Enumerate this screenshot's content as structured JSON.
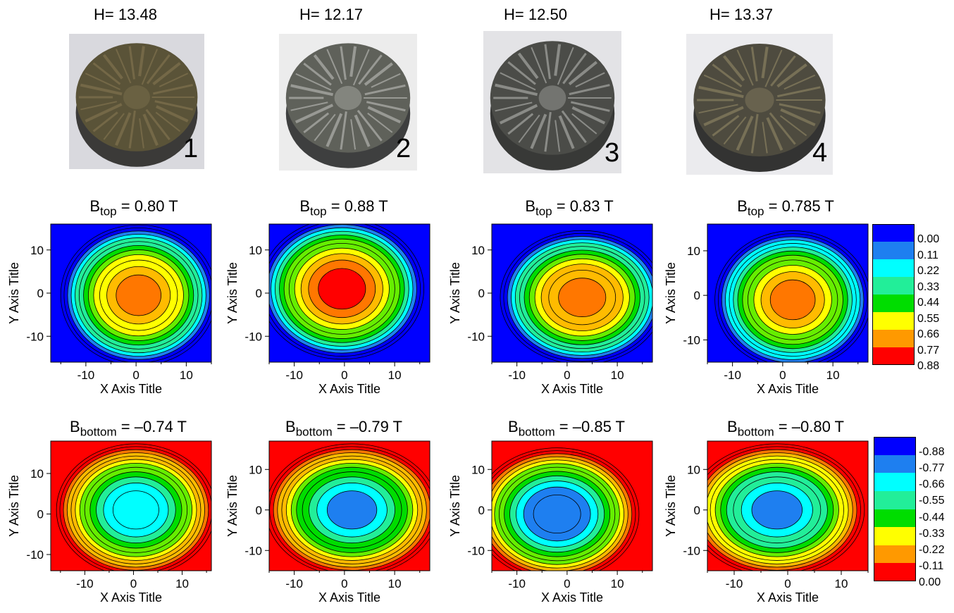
{
  "samples": [
    {
      "h_label": "H= 13.48",
      "number": "1",
      "photo_colors": {
        "bg": "#d9d9de",
        "face": "#5a5338",
        "rim": "#3b3a38",
        "highlight": "#8a7a55"
      }
    },
    {
      "h_label": "H= 12.17",
      "number": "2",
      "photo_colors": {
        "bg": "#ececec",
        "face": "#5f615a",
        "rim": "#3e3f3f",
        "highlight": "#c8c8c4"
      }
    },
    {
      "h_label": "H= 12.50",
      "number": "3",
      "photo_colors": {
        "bg": "#e3e3e6",
        "face": "#4b4c48",
        "rim": "#383937",
        "highlight": "#bfc0bc"
      }
    },
    {
      "h_label": "H= 13.37",
      "number": "4",
      "photo_colors": {
        "bg": "#ebebee",
        "face": "#4e4b3f",
        "rim": "#333332",
        "highlight": "#9a8f6a"
      }
    }
  ],
  "chart_data": [
    {
      "type": "heatmap",
      "row": "top",
      "title_main": "B",
      "title_sub": "top",
      "title_rest": " = 0.80 T",
      "xlabel": "X Axis Title",
      "ylabel": "Y Axis Title",
      "xlim": [
        -17,
        15
      ],
      "ylim": [
        -16,
        16
      ],
      "xticks": [
        "-10",
        "0",
        "10"
      ],
      "yticks": [
        "10",
        "0",
        "-10"
      ],
      "peak": 0.8,
      "center": [
        0.5,
        -0.5
      ],
      "spread": [
        9.5,
        10
      ]
    },
    {
      "type": "heatmap",
      "row": "top",
      "title_main": "B",
      "title_sub": "top",
      "title_rest": " = 0.88 T",
      "xlabel": "X Axis Title",
      "ylabel": "Y Axis Title",
      "xlim": [
        -15,
        17
      ],
      "ylim": [
        -16,
        16
      ],
      "xticks": [
        "-10",
        "0",
        "10"
      ],
      "yticks": [
        "10",
        "0",
        "-10"
      ],
      "peak": 0.88,
      "center": [
        -0.5,
        1
      ],
      "spread": [
        10,
        10
      ]
    },
    {
      "type": "heatmap",
      "row": "top",
      "title_main": "B",
      "title_sub": "top",
      "title_rest": " = 0.83 T",
      "xlabel": "X Axis Title",
      "ylabel": "Y Axis Title",
      "xlim": [
        -15,
        17
      ],
      "ylim": [
        -16,
        16
      ],
      "xticks": [
        "-10",
        "0",
        "10"
      ],
      "yticks": [
        "10",
        "0",
        "-10"
      ],
      "peak": 0.83,
      "center": [
        3,
        -1
      ],
      "spread": [
        10,
        9.5
      ]
    },
    {
      "type": "heatmap",
      "row": "top",
      "title_main": "B",
      "title_sub": "top",
      "title_rest": " = 0.785 T",
      "xlabel": "X Axis Title",
      "ylabel": "Y Axis Title",
      "xlim": [
        -15,
        17
      ],
      "ylim": [
        -15,
        16
      ],
      "xticks": [
        "-10",
        "0",
        "10"
      ],
      "yticks": [
        "10",
        "0",
        "-10"
      ],
      "peak": 0.785,
      "center": [
        2,
        -1
      ],
      "spread": [
        9.5,
        9.5
      ]
    },
    {
      "type": "heatmap",
      "row": "bottom",
      "title_main": "B",
      "title_sub": "bottom",
      "title_rest": " = –0.74 T",
      "xlabel": "X Axis Title",
      "ylabel": "Y Axis Title",
      "xlim": [
        -17,
        16
      ],
      "ylim": [
        -14,
        18
      ],
      "xticks": [
        "-10",
        "0",
        "10"
      ],
      "yticks": [
        "10",
        "0",
        "-10"
      ],
      "peak": -0.74,
      "center": [
        0.5,
        1
      ],
      "spread": [
        10,
        10
      ]
    },
    {
      "type": "heatmap",
      "row": "bottom",
      "title_main": "B",
      "title_sub": "bottom",
      "title_rest": " = –0.79 T",
      "xlabel": "X Axis Title",
      "ylabel": "Y Axis Title",
      "xlim": [
        -15,
        17
      ],
      "ylim": [
        -15,
        17
      ],
      "xticks": [
        "-10",
        "0",
        "10"
      ],
      "yticks": [
        "10",
        "0",
        "-10"
      ],
      "peak": -0.79,
      "center": [
        1.5,
        0
      ],
      "spread": [
        10.5,
        10
      ]
    },
    {
      "type": "heatmap",
      "row": "bottom",
      "title_main": "B",
      "title_sub": "bottom",
      "title_rest": " = –0.85 T",
      "xlabel": "X Axis Title",
      "ylabel": "Y Axis Title",
      "xlim": [
        -15,
        17
      ],
      "ylim": [
        -15,
        17
      ],
      "xticks": [
        "-10",
        "0",
        "10"
      ],
      "yticks": [
        "10",
        "0",
        "-10"
      ],
      "peak": -0.85,
      "center": [
        -2,
        -1
      ],
      "spread": [
        10,
        10
      ]
    },
    {
      "type": "heatmap",
      "row": "bottom",
      "title_main": "B",
      "title_sub": "bottom",
      "title_rest": " = –0.80 T",
      "xlabel": "X Axis Title",
      "ylabel": "Y Axis Title",
      "xlim": [
        -15,
        15
      ],
      "ylim": [
        -15,
        17
      ],
      "xticks": [
        "-10",
        "0",
        "10"
      ],
      "yticks": [
        "10",
        "0",
        "-10"
      ],
      "peak": -0.8,
      "center": [
        -2,
        0
      ],
      "spread": [
        10,
        10
      ]
    }
  ],
  "legend_top": {
    "labels": [
      "0.00",
      "0.11",
      "0.22",
      "0.33",
      "0.44",
      "0.55",
      "0.66",
      "0.77",
      "0.88"
    ],
    "colors": [
      "#0000ff",
      "#1e7ff0",
      "#00ffff",
      "#22ee99",
      "#00dd00",
      "#ffff00",
      "#ff9900",
      "#ff0000"
    ]
  },
  "legend_bottom": {
    "labels": [
      "-0.88",
      "-0.77",
      "-0.66",
      "-0.55",
      "-0.44",
      "-0.33",
      "-0.22",
      "-0.11",
      "0.00"
    ],
    "colors": [
      "#0000ff",
      "#1e7ff0",
      "#00ffff",
      "#22ee99",
      "#00dd00",
      "#ffff00",
      "#ff9900",
      "#ff0000"
    ]
  },
  "colormap": [
    "#0000ff",
    "#1e7ff0",
    "#00ffff",
    "#22ee99",
    "#00dd00",
    "#66ee00",
    "#ffff00",
    "#ffbb00",
    "#ff7700",
    "#ff0000"
  ]
}
